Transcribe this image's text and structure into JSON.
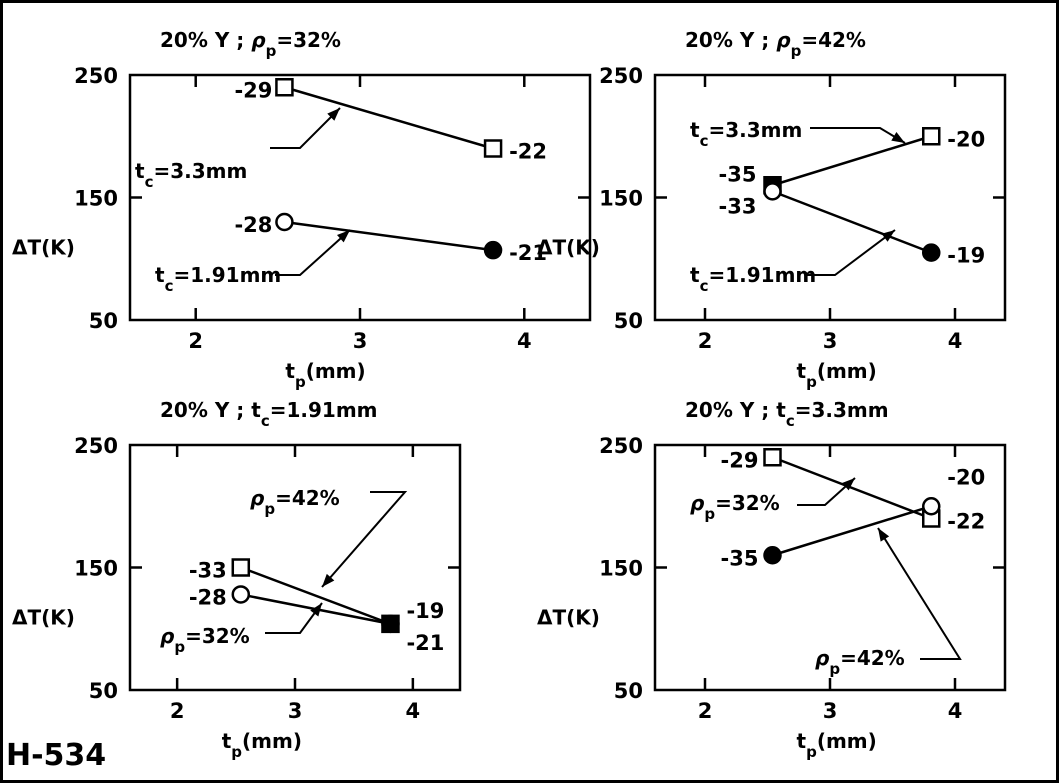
{
  "figure_id": "H-534",
  "chart_data": [
    {
      "type": "line",
      "title": "20% Y ; ρp=32%",
      "xlabel": "tp(mm)",
      "ylabel": "ΔT(K)",
      "xlim": [
        1.6,
        4.4
      ],
      "ylim": [
        50,
        250
      ],
      "xticks": [
        2,
        3,
        4
      ],
      "yticks": [
        50,
        150,
        250
      ],
      "grid": false,
      "series": [
        {
          "name": "tc=3.3mm",
          "marker": "square",
          "points": [
            {
              "x": 2.54,
              "y": 240,
              "label": "-29",
              "fill": "open"
            },
            {
              "x": 3.81,
              "y": 190,
              "label": "-22",
              "fill": "open"
            }
          ]
        },
        {
          "name": "tc=1.91mm",
          "marker": "circle",
          "points": [
            {
              "x": 2.54,
              "y": 130,
              "label": "-28",
              "fill": "open"
            },
            {
              "x": 3.81,
              "y": 107,
              "label": "-21",
              "fill": "filled"
            }
          ]
        }
      ]
    },
    {
      "type": "line",
      "title": "20% Y ; ρp=42%",
      "xlabel": "tp(mm)",
      "ylabel": "ΔT(K)",
      "xlim": [
        1.6,
        4.4
      ],
      "ylim": [
        50,
        250
      ],
      "xticks": [
        2,
        3,
        4
      ],
      "yticks": [
        50,
        150,
        250
      ],
      "grid": false,
      "series": [
        {
          "name": "tc=3.3mm",
          "marker": "square",
          "points": [
            {
              "x": 2.54,
              "y": 160,
              "label": "-35",
              "fill": "filled"
            },
            {
              "x": 3.81,
              "y": 200,
              "label": "-20",
              "fill": "open"
            }
          ]
        },
        {
          "name": "tc=1.91mm",
          "marker": "circle",
          "points": [
            {
              "x": 2.54,
              "y": 155,
              "label": "-33",
              "fill": "open"
            },
            {
              "x": 3.81,
              "y": 105,
              "label": "-19",
              "fill": "filled"
            }
          ]
        }
      ]
    },
    {
      "type": "line",
      "title": "20% Y ; tc=1.91mm",
      "xlabel": "tp(mm)",
      "ylabel": "ΔT(K)",
      "xlim": [
        1.6,
        4.4
      ],
      "ylim": [
        50,
        250
      ],
      "xticks": [
        2,
        3,
        4
      ],
      "yticks": [
        50,
        150,
        250
      ],
      "grid": false,
      "series": [
        {
          "name": "ρp=42%",
          "marker": "square",
          "points": [
            {
              "x": 2.54,
              "y": 150,
              "label": "-33",
              "fill": "open"
            },
            {
              "x": 3.81,
              "y": 104,
              "label": "-19",
              "fill": "filled"
            }
          ]
        },
        {
          "name": "ρp=32%",
          "marker": "circle",
          "points": [
            {
              "x": 2.54,
              "y": 128,
              "label": "-28",
              "fill": "open"
            },
            {
              "x": 3.81,
              "y": 104,
              "label": "-21",
              "fill": "filled"
            }
          ]
        }
      ]
    },
    {
      "type": "line",
      "title": "20% Y ; tc=3.3mm",
      "xlabel": "tp(mm)",
      "ylabel": "ΔT(K)",
      "xlim": [
        1.6,
        4.4
      ],
      "ylim": [
        50,
        250
      ],
      "xticks": [
        2,
        3,
        4
      ],
      "yticks": [
        50,
        150,
        250
      ],
      "grid": false,
      "series": [
        {
          "name": "ρp=32%",
          "marker": "square",
          "points": [
            {
              "x": 2.54,
              "y": 240,
              "label": "-29",
              "fill": "open"
            },
            {
              "x": 3.81,
              "y": 190,
              "label": "-22",
              "fill": "open"
            }
          ]
        },
        {
          "name": "ρp=42%",
          "marker": "circle",
          "points": [
            {
              "x": 2.54,
              "y": 160,
              "label": "-35",
              "fill": "filled"
            },
            {
              "x": 3.81,
              "y": 200,
              "label": "-20",
              "fill": "open"
            }
          ]
        }
      ]
    }
  ]
}
